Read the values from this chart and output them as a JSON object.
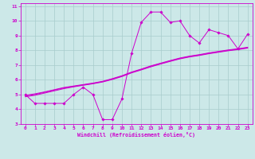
{
  "xlabel": "Windchill (Refroidissement éolien,°C)",
  "background_color": "#cce8e8",
  "grid_color": "#a8cccc",
  "line_color": "#cc00cc",
  "xlim": [
    -0.5,
    23.5
  ],
  "ylim": [
    3,
    11.2
  ],
  "xticks": [
    0,
    1,
    2,
    3,
    4,
    5,
    6,
    7,
    8,
    9,
    10,
    11,
    12,
    13,
    14,
    15,
    16,
    17,
    18,
    19,
    20,
    21,
    22,
    23
  ],
  "yticks": [
    3,
    4,
    5,
    6,
    7,
    8,
    9,
    10,
    11
  ],
  "line1_y": [
    5.0,
    4.4,
    4.4,
    4.4,
    4.4,
    5.0,
    5.5,
    5.0,
    3.3,
    3.3,
    4.7,
    7.8,
    9.9,
    10.6,
    10.6,
    9.9,
    10.0,
    9.0,
    8.5,
    9.4,
    9.2,
    9.0,
    8.1,
    9.1
  ],
  "line2_y": [
    4.9,
    5.0,
    5.15,
    5.3,
    5.45,
    5.55,
    5.65,
    5.75,
    5.88,
    6.05,
    6.25,
    6.5,
    6.7,
    6.92,
    7.1,
    7.28,
    7.45,
    7.58,
    7.68,
    7.8,
    7.9,
    8.0,
    8.08,
    8.18
  ],
  "line3_y": [
    4.85,
    4.95,
    5.1,
    5.25,
    5.4,
    5.52,
    5.63,
    5.73,
    5.85,
    6.02,
    6.22,
    6.47,
    6.67,
    6.88,
    7.07,
    7.25,
    7.42,
    7.55,
    7.65,
    7.77,
    7.87,
    7.97,
    8.05,
    8.15
  ],
  "line4_y": [
    4.95,
    5.05,
    5.18,
    5.33,
    5.48,
    5.58,
    5.68,
    5.78,
    5.9,
    6.08,
    6.28,
    6.53,
    6.73,
    6.95,
    7.13,
    7.31,
    7.48,
    7.61,
    7.71,
    7.83,
    7.93,
    8.03,
    8.11,
    8.21
  ]
}
